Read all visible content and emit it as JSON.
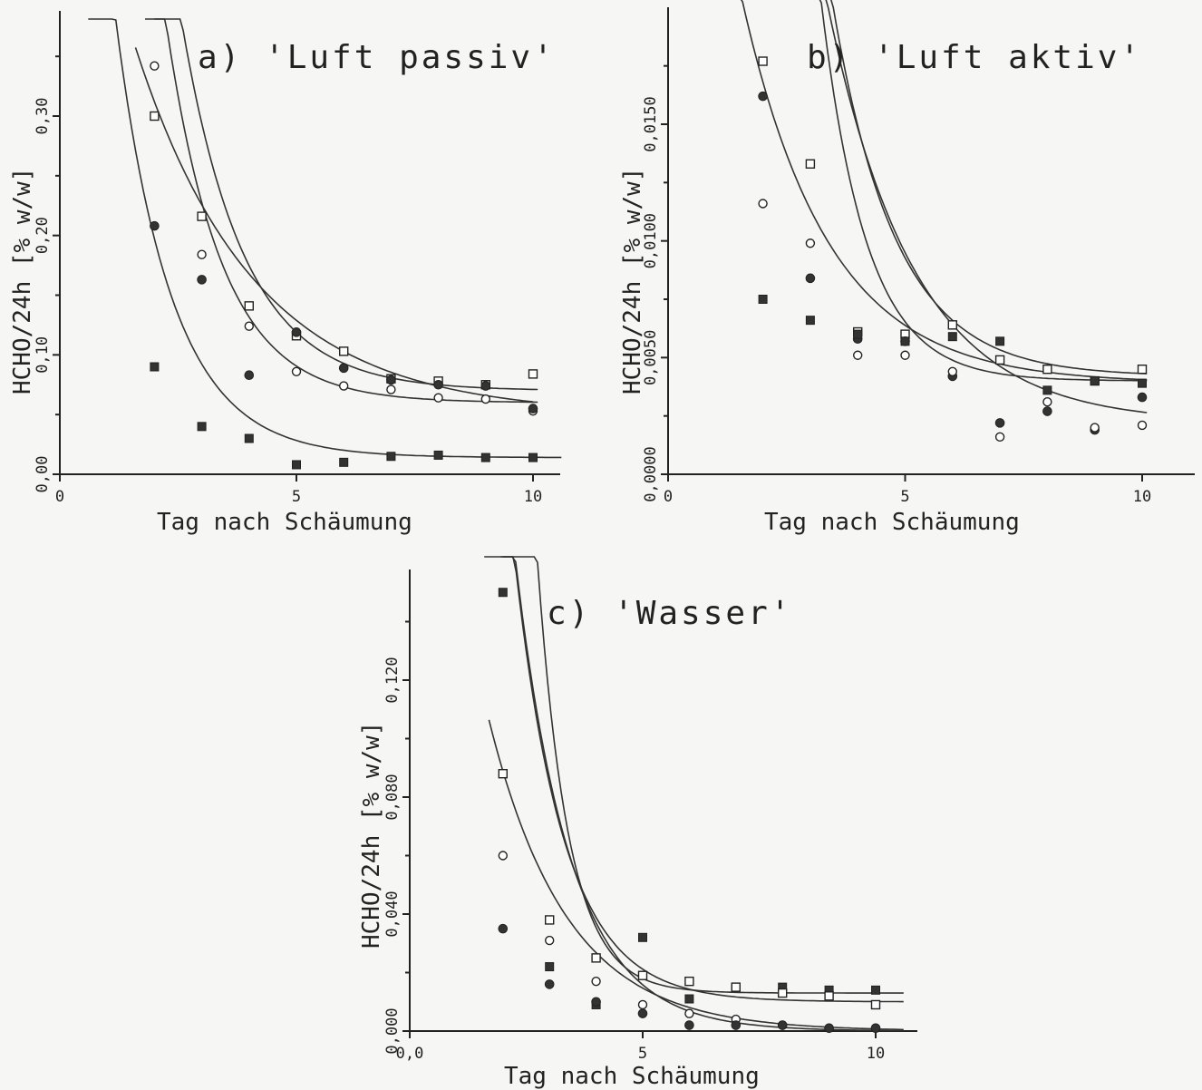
{
  "chart_data": [
    {
      "type": "scatter",
      "title": "a) 'Luft passiv'",
      "xlabel": "Tag nach Schäumung",
      "ylabel": "HCHO/24h [% w/w]",
      "xlim": [
        0,
        10.7
      ],
      "ylim": [
        0,
        0.39
      ],
      "x_ticks": [
        {
          "value": 0,
          "label": "0"
        },
        {
          "value": 5,
          "label": "5"
        },
        {
          "value": 10,
          "label": "10"
        }
      ],
      "y_ticks": [
        {
          "value": 0,
          "label": "0,00"
        },
        {
          "value": 0.1,
          "label": "0,10"
        },
        {
          "value": 0.2,
          "label": "0,20"
        },
        {
          "value": 0.3,
          "label": "0,30"
        }
      ],
      "y_minor_ticks": [
        0.05,
        0.15,
        0.25,
        0.35
      ],
      "grid": false,
      "series": [
        {
          "marker": "open-circle",
          "x": [
            2,
            3,
            4,
            5,
            6,
            7,
            8,
            9,
            10
          ],
          "y": [
            0.342,
            0.184,
            0.124,
            0.086,
            0.074,
            0.071,
            0.064,
            0.063,
            0.053
          ],
          "curve": {
            "a": 0.06,
            "b": 0.6,
            "k": 0.85,
            "x0": 1.8,
            "x1": 10.1
          }
        },
        {
          "marker": "open-square",
          "x": [
            2,
            3,
            4,
            5,
            6,
            7,
            8,
            9,
            10
          ],
          "y": [
            0.3,
            0.216,
            0.141,
            0.116,
            0.103,
            0.08,
            0.078,
            0.075,
            0.084
          ],
          "curve": {
            "a": 0.07,
            "b": 0.7,
            "k": 0.76,
            "x0": 2.0,
            "x1": 10.1
          }
        },
        {
          "marker": "filled-circle",
          "x": [
            2,
            3,
            4,
            5,
            6,
            7,
            8,
            9,
            10
          ],
          "y": [
            0.208,
            0.163,
            0.083,
            0.119,
            0.089,
            0.079,
            0.075,
            0.074,
            0.055
          ],
          "curve": {
            "a": 0.05,
            "b": 0.32,
            "k": 0.4,
            "x0": 1.6,
            "x1": 10.0
          }
        },
        {
          "marker": "filled-square",
          "x": [
            2,
            3,
            4,
            5,
            6,
            7,
            8,
            9,
            10
          ],
          "y": [
            0.09,
            0.04,
            0.03,
            0.008,
            0.01,
            0.015,
            0.016,
            0.014,
            0.014
          ],
          "curve": {
            "a": 0.014,
            "b": 0.28,
            "k": 0.85,
            "x0": 0.6,
            "x1": 10.6
          }
        }
      ]
    },
    {
      "type": "scatter",
      "title": "b) 'Luft aktiv'",
      "xlabel": "Tag nach Schäumung",
      "ylabel": "HCHO/24h [% w/w]",
      "xlim": [
        0,
        11
      ],
      "ylim": [
        0,
        0.0195
      ],
      "x_ticks": [
        {
          "value": 0,
          "label": "0"
        },
        {
          "value": 5,
          "label": "5"
        },
        {
          "value": 10,
          "label": "10"
        }
      ],
      "y_ticks": [
        {
          "value": 0,
          "label": "0,0000"
        },
        {
          "value": 0.005,
          "label": "0,0050"
        },
        {
          "value": 0.01,
          "label": "0,0100"
        },
        {
          "value": 0.015,
          "label": "0,0150"
        }
      ],
      "y_minor_ticks": [
        0.0025,
        0.0075,
        0.0125,
        0.0175
      ],
      "grid": false,
      "series": [
        {
          "marker": "open-square",
          "x": [
            2,
            3,
            4,
            5,
            6,
            7,
            8,
            9,
            10
          ],
          "y": [
            0.0177,
            0.0133,
            0.0061,
            0.006,
            0.0064,
            0.0049,
            0.0045,
            0.004,
            0.0045
          ],
          "curve": {
            "a": 0.0042,
            "b": 0.07,
            "k": 0.75,
            "x0": 2.0,
            "x1": 10.1
          }
        },
        {
          "marker": "filled-circle",
          "x": [
            2,
            3,
            4,
            5,
            6,
            7,
            8,
            9,
            10
          ],
          "y": [
            0.0162,
            0.0084,
            0.0058,
            0.0057,
            0.0042,
            0.0022,
            0.0027,
            0.0019,
            0.0033
          ],
          "curve": {
            "a": 0.004,
            "b": 0.1,
            "k": 1.05,
            "x0": 2.1,
            "x1": 10.1
          }
        },
        {
          "marker": "open-circle",
          "x": [
            2,
            3,
            4,
            5,
            6,
            7,
            8,
            9,
            10
          ],
          "y": [
            0.0116,
            0.0099,
            0.0051,
            0.0051,
            0.0044,
            0.0016,
            0.0031,
            0.002,
            0.0021
          ],
          "curve": {
            "a": 0.0022,
            "b": 0.05,
            "k": 0.55,
            "x0": 1.7,
            "x1": 10.1
          }
        },
        {
          "marker": "filled-square",
          "x": [
            2,
            3,
            4,
            5,
            6,
            7,
            8,
            9,
            10
          ],
          "y": [
            0.0075,
            0.0066,
            0.006,
            0.0057,
            0.0059,
            0.0057,
            0.0036,
            0.004,
            0.0039
          ],
          "curve": {
            "a": 0.0039,
            "b": 0.017,
            "k": 0.55,
            "x0": 1.5,
            "x1": 10.1
          }
        }
      ]
    },
    {
      "type": "scatter",
      "title": "c) 'Wasser'",
      "xlabel": "Tag nach Schäumung",
      "ylabel": "HCHO/24h [% w/w]",
      "xlim": [
        0,
        10.7
      ],
      "ylim": [
        0,
        0.156
      ],
      "x_ticks": [
        {
          "value": 0,
          "label": "0,0"
        },
        {
          "value": 5,
          "label": "5"
        },
        {
          "value": 10,
          "label": "10"
        }
      ],
      "y_ticks": [
        {
          "value": 0,
          "label": "0,000"
        },
        {
          "value": 0.04,
          "label": "0,040"
        },
        {
          "value": 0.08,
          "label": "0,080"
        },
        {
          "value": 0.12,
          "label": "0,120"
        }
      ],
      "y_minor_ticks": [
        0.02,
        0.06,
        0.1,
        0.14
      ],
      "grid": false,
      "series": [
        {
          "marker": "filled-square",
          "x": [
            2,
            3,
            4,
            5,
            6,
            7,
            8,
            9,
            10
          ],
          "y": [
            0.15,
            0.022,
            0.009,
            0.032,
            0.011,
            0.015,
            0.015,
            0.014,
            0.014
          ],
          "curve": {
            "a": 0.013,
            "b": 0.95,
            "k": 1.5,
            "x0": 1.95,
            "x1": 10.6
          }
        },
        {
          "marker": "open-square",
          "x": [
            2,
            3,
            4,
            5,
            6,
            7,
            8,
            9,
            10
          ],
          "y": [
            0.088,
            0.038,
            0.025,
            0.019,
            0.017,
            0.015,
            0.013,
            0.012,
            0.009
          ],
          "curve": {
            "a": 0.01,
            "b": 0.31,
            "k": 0.95,
            "x0": 2.0,
            "x1": 10.6
          }
        },
        {
          "marker": "open-circle",
          "x": [
            2,
            3,
            4,
            5,
            6,
            7,
            8,
            9,
            10
          ],
          "y": [
            0.06,
            0.031,
            0.017,
            0.009,
            0.006,
            0.004,
            0.002,
            0.001,
            0.001
          ],
          "curve": {
            "a": 0.0,
            "b": 0.31,
            "k": 0.85,
            "x0": 1.6,
            "x1": 10.6
          }
        },
        {
          "marker": "filled-circle",
          "x": [
            2,
            3,
            4,
            5,
            6,
            7,
            8,
            9,
            10
          ],
          "y": [
            0.035,
            0.016,
            0.01,
            0.006,
            0.002,
            0.002,
            0.002,
            0.001,
            0.001
          ],
          "curve": {
            "a": 0.0,
            "b": 0.12,
            "k": 0.6,
            "x0": 1.7,
            "x1": 10.6
          }
        }
      ]
    }
  ]
}
